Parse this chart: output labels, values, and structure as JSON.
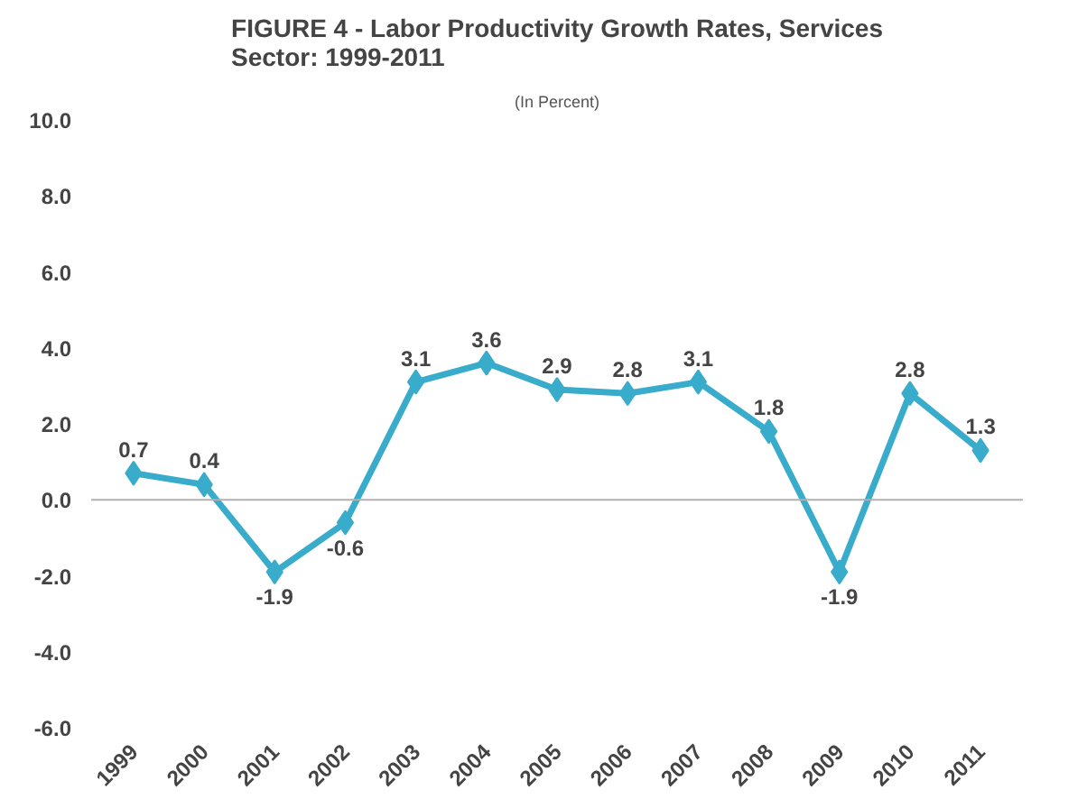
{
  "chart_data": {
    "type": "line",
    "title": "FIGURE 4 - Labor Productivity Growth Rates, Services\nSector:  1999-2011",
    "subtitle": "(In Percent)",
    "categories": [
      "1999",
      "2000",
      "2001",
      "2002",
      "2003",
      "2004",
      "2005",
      "2006",
      "2007",
      "2008",
      "2009",
      "2010",
      "2011"
    ],
    "series": [
      {
        "color": "#3aaccb",
        "values": [
          0.7,
          0.4,
          -1.9,
          -0.6,
          3.1,
          3.6,
          2.9,
          2.8,
          3.1,
          1.8,
          -1.9,
          2.8,
          1.3
        ]
      }
    ],
    "ylim": [
      -6,
      10
    ],
    "yticks": [
      {
        "value": -6,
        "label": "-6.0"
      },
      {
        "value": -4,
        "label": "-4.0"
      },
      {
        "value": -2,
        "label": "-2.0"
      },
      {
        "value": 0,
        "label": "0.0"
      },
      {
        "value": 2,
        "label": "2.0"
      },
      {
        "value": 4,
        "label": "4.0"
      },
      {
        "value": 6,
        "label": "6.0"
      },
      {
        "value": 8,
        "label": "8.0"
      },
      {
        "value": 10,
        "label": "10.0"
      }
    ],
    "ref_lines": [
      {
        "axis": "y",
        "value": 0,
        "color": "#b0b0b0"
      }
    ],
    "marker": "diamond",
    "line_style": "solid",
    "data_labels": true
  }
}
